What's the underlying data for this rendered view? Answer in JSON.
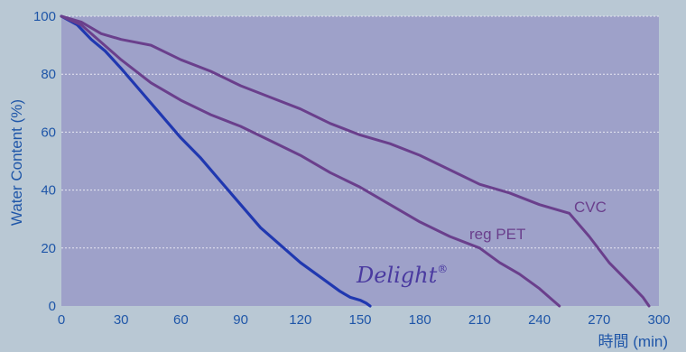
{
  "chart_data": {
    "type": "line",
    "title": "",
    "xlabel": "時間 (min)",
    "ylabel": "Water Content (%)",
    "xlim": [
      0,
      300
    ],
    "ylim": [
      0,
      100
    ],
    "xticks": [
      "0",
      "30",
      "60",
      "90",
      "120",
      "150",
      "180",
      "210",
      "240",
      "270",
      "300"
    ],
    "yticks": [
      "0",
      "20",
      "40",
      "60",
      "80",
      "100"
    ],
    "grid": true,
    "legend": "none",
    "colors": {
      "plot_bg": "#9ea1c9",
      "page_bg": "#b9c8d4",
      "text": "#1f56a8",
      "Delight": "#2038b0",
      "reg PET": "#6a3f8c",
      "CVC": "#6a3f8c"
    },
    "series": [
      {
        "name": "Delight",
        "label_text": "Delight",
        "label_mark": "®",
        "x": [
          0,
          8,
          15,
          22,
          30,
          40,
          50,
          60,
          70,
          80,
          90,
          100,
          110,
          120,
          130,
          140,
          145,
          150,
          153,
          155
        ],
        "y": [
          100,
          97,
          92,
          88,
          82,
          74,
          66,
          58,
          51,
          43,
          35,
          27,
          21,
          15,
          10,
          5,
          3,
          2,
          1,
          0
        ]
      },
      {
        "name": "reg PET",
        "label_text": "reg PET",
        "x": [
          0,
          10,
          20,
          30,
          45,
          60,
          75,
          90,
          105,
          120,
          135,
          150,
          165,
          180,
          195,
          210,
          220,
          230,
          240,
          245,
          250
        ],
        "y": [
          100,
          97,
          91,
          85,
          77,
          71,
          66,
          62,
          57,
          52,
          46,
          41,
          35,
          29,
          24,
          20,
          15,
          11,
          6,
          3,
          0
        ]
      },
      {
        "name": "CVC",
        "label_text": "CVC",
        "x": [
          0,
          10,
          20,
          30,
          45,
          60,
          75,
          90,
          105,
          120,
          135,
          150,
          165,
          180,
          195,
          210,
          225,
          240,
          255,
          265,
          275,
          285,
          292,
          295
        ],
        "y": [
          100,
          98,
          94,
          92,
          90,
          85,
          81,
          76,
          72,
          68,
          63,
          59,
          56,
          52,
          47,
          42,
          39,
          35,
          32,
          24,
          15,
          8,
          3,
          0
        ]
      }
    ]
  }
}
